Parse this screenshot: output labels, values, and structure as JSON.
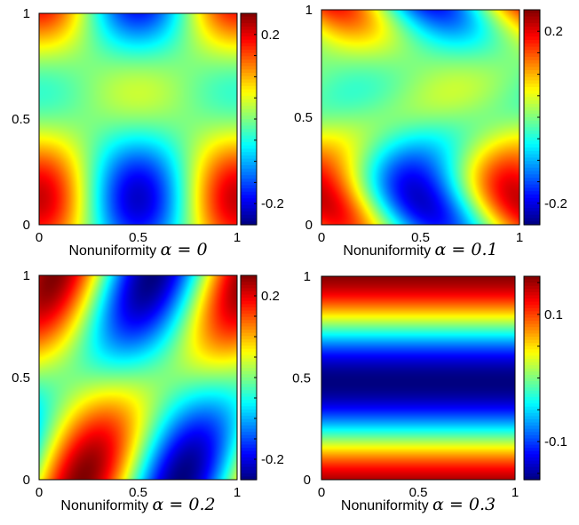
{
  "chart_data": [
    {
      "type": "heatmap",
      "xlabel_prefix": "Nonuniformity",
      "alpha_label": "α = 0",
      "xticks": [
        "0",
        "0.5",
        "1"
      ],
      "yticks": [
        "0",
        "0.5",
        "1"
      ],
      "xlim": [
        0,
        1
      ],
      "ylim": [
        0,
        1
      ],
      "colorbar_ticks": [
        {
          "value": 0.2,
          "label": "0.2"
        },
        {
          "value": -0.2,
          "label": "-0.2"
        }
      ],
      "colorbar_range": [
        -0.25,
        0.25
      ],
      "colormap": "jet",
      "field": {
        "alpha": 0.0
      },
      "colors": {
        "frame": "#000000"
      }
    },
    {
      "type": "heatmap",
      "xlabel_prefix": "Nonuniformity",
      "alpha_label": "α = 0.1",
      "xticks": [
        "0",
        "0.5",
        "1"
      ],
      "yticks": [
        "0",
        "0.5",
        "1"
      ],
      "xlim": [
        0,
        1
      ],
      "ylim": [
        0,
        1
      ],
      "colorbar_ticks": [
        {
          "value": 0.2,
          "label": "0.2"
        },
        {
          "value": -0.2,
          "label": "-0.2"
        }
      ],
      "colorbar_range": [
        -0.25,
        0.25
      ],
      "colormap": "jet",
      "field": {
        "alpha": 0.1
      },
      "colors": {
        "frame": "#000000"
      }
    },
    {
      "type": "heatmap",
      "xlabel_prefix": "Nonuniformity",
      "alpha_label": "α = 0.2",
      "xticks": [
        "0",
        "0.5",
        "1"
      ],
      "yticks": [
        "0",
        "0.5",
        "1"
      ],
      "xlim": [
        0,
        1
      ],
      "ylim": [
        0,
        1
      ],
      "colorbar_ticks": [
        {
          "value": 0.2,
          "label": "0.2"
        },
        {
          "value": -0.2,
          "label": "-0.2"
        }
      ],
      "colorbar_range": [
        -0.25,
        0.25
      ],
      "colormap": "jet",
      "field": {
        "alpha": 0.2
      },
      "colors": {
        "frame": "#000000"
      }
    },
    {
      "type": "heatmap",
      "xlabel_prefix": "Nonuniformity",
      "alpha_label": "α = 0.3",
      "xticks": [
        "0",
        "0.5",
        "1"
      ],
      "yticks": [
        "0",
        "0.5",
        "1"
      ],
      "xlim": [
        0,
        1
      ],
      "ylim": [
        0,
        1
      ],
      "colorbar_ticks": [
        {
          "value": 0.1,
          "label": "0.1"
        },
        {
          "value": -0.1,
          "label": "-0.1"
        }
      ],
      "colorbar_range": [
        -0.16,
        0.16
      ],
      "colormap": "jet",
      "field": {
        "alpha": 0.3
      },
      "colors": {
        "frame": "#000000"
      }
    }
  ]
}
